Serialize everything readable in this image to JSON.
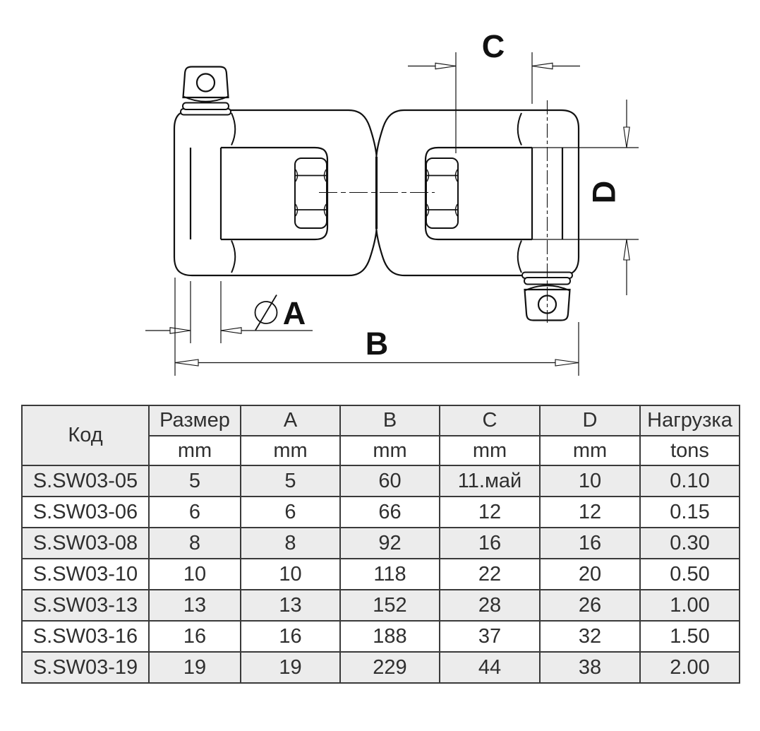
{
  "drawing": {
    "description": "jaw-jaw swivel shackle technical line drawing, side view, with dimension callouts",
    "dimension_labels": {
      "a": "A",
      "b": "B",
      "c": "C",
      "d": "D"
    },
    "diameter_symbol": "⌀"
  },
  "table": {
    "code_header": "Код",
    "columns": [
      "Размер",
      "A",
      "B",
      "C",
      "D",
      "Нагрузка"
    ],
    "units": [
      "mm",
      "mm",
      "mm",
      "mm",
      "mm",
      "tons"
    ],
    "rows": [
      [
        "S.SW03-05",
        "5",
        "5",
        "60",
        "11.май",
        "10",
        "0.10"
      ],
      [
        "S.SW03-06",
        "6",
        "6",
        "66",
        "12",
        "12",
        "0.15"
      ],
      [
        "S.SW03-08",
        "8",
        "8",
        "92",
        "16",
        "16",
        "0.30"
      ],
      [
        "S.SW03-10",
        "10",
        "10",
        "118",
        "22",
        "20",
        "0.50"
      ],
      [
        "S.SW03-13",
        "13",
        "13",
        "152",
        "28",
        "26",
        "1.00"
      ],
      [
        "S.SW03-16",
        "16",
        "16",
        "188",
        "37",
        "32",
        "1.50"
      ],
      [
        "S.SW03-19",
        "19",
        "19",
        "229",
        "44",
        "38",
        "2.00"
      ]
    ]
  },
  "colors": {
    "line": "#111111",
    "table_border": "#3a3a3a",
    "row_shade": "#ececec",
    "table_text": "#2f2f2f",
    "background": "#ffffff"
  }
}
